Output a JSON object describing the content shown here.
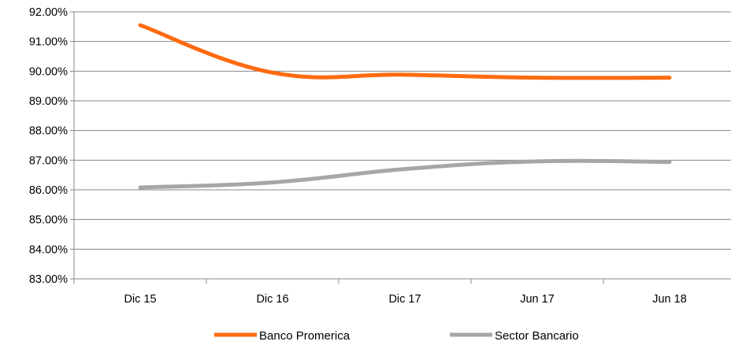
{
  "chart_data": {
    "type": "line",
    "categories": [
      "Dic 15",
      "Dic 16",
      "Dic 17",
      "Jun 17",
      "Jun 18"
    ],
    "series": [
      {
        "name": "Banco Promerica",
        "values": [
          91.55,
          89.95,
          89.88,
          89.78,
          89.78
        ],
        "color": "#FF6A10"
      },
      {
        "name": "Sector Bancario",
        "values": [
          86.08,
          86.25,
          86.7,
          86.96,
          86.94
        ],
        "color": "#A6A6A6"
      }
    ],
    "ylim": [
      83.0,
      92.0
    ],
    "yticks": [
      "92.00%",
      "91.00%",
      "90.00%",
      "89.00%",
      "88.00%",
      "87.00%",
      "86.00%",
      "85.00%",
      "84.00%",
      "83.00%"
    ],
    "title": "",
    "xlabel": "",
    "ylabel": "",
    "grid": true,
    "legend_position": "bottom",
    "gridline_color": "#878787"
  }
}
